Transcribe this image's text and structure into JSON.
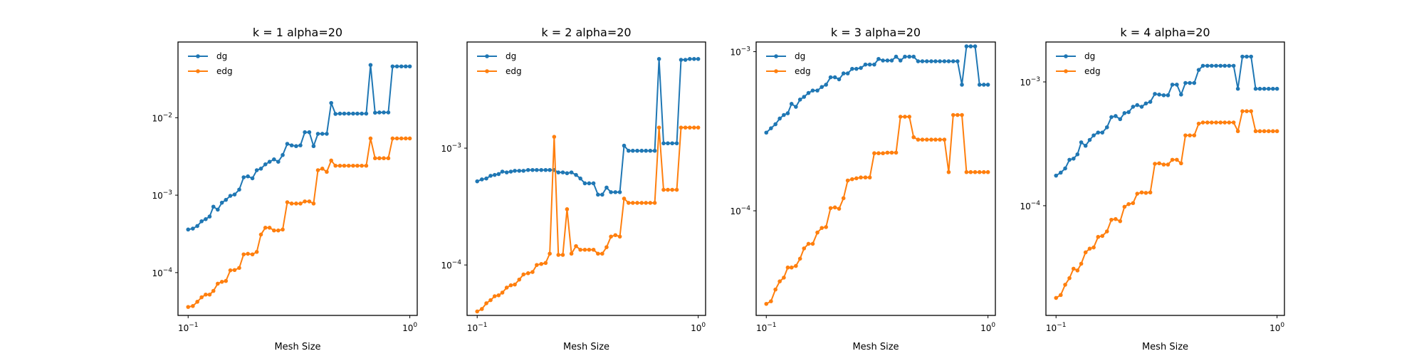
{
  "chart_data": [
    {
      "type": "line",
      "title": "k = 1 alpha=20",
      "xlabel": "Mesh Size",
      "ylabel": "",
      "x_scale": "log",
      "y_scale": "log",
      "xlim": [
        0.09,
        1.08
      ],
      "ylim": [
        2.8e-05,
        0.095
      ],
      "x_ticks": [
        {
          "value": 0.1,
          "label": "10",
          "exp": "−1"
        },
        {
          "value": 1.0,
          "label": "10",
          "exp": "0"
        }
      ],
      "y_ticks": [
        {
          "value": 0.0001,
          "label": "10",
          "exp": "−4"
        },
        {
          "value": 0.001,
          "label": "10",
          "exp": "−3"
        },
        {
          "value": 0.01,
          "label": "10",
          "exp": "−2"
        }
      ],
      "legend_position": "top-left",
      "grid": false,
      "x": [
        0.1,
        0.105,
        0.11,
        0.115,
        0.12,
        0.125,
        0.13,
        0.136,
        0.142,
        0.148,
        0.155,
        0.162,
        0.17,
        0.178,
        0.186,
        0.195,
        0.204,
        0.213,
        0.223,
        0.233,
        0.244,
        0.255,
        0.267,
        0.28,
        0.293,
        0.307,
        0.321,
        0.336,
        0.352,
        0.368,
        0.385,
        0.403,
        0.422,
        0.442,
        0.462,
        0.484,
        0.506,
        0.53,
        0.555,
        0.58,
        0.607,
        0.636,
        0.665,
        0.697,
        0.729,
        0.763,
        0.8,
        0.836,
        0.875,
        0.916,
        0.958,
        1.0
      ],
      "series": [
        {
          "name": "dg",
          "color": "#1f77b4",
          "values": [
            0.00036,
            0.00037,
            0.0004,
            0.00046,
            0.00049,
            0.00053,
            0.00071,
            0.00065,
            0.0008,
            0.00087,
            0.00098,
            0.00102,
            0.00118,
            0.0017,
            0.00175,
            0.00165,
            0.0021,
            0.0022,
            0.0025,
            0.0027,
            0.0029,
            0.0027,
            0.0033,
            0.0046,
            0.0044,
            0.0043,
            0.0044,
            0.0065,
            0.0065,
            0.0043,
            0.0062,
            0.0062,
            0.0062,
            0.0155,
            0.0112,
            0.0113,
            0.0113,
            0.0113,
            0.0113,
            0.0113,
            0.0113,
            0.0113,
            0.048,
            0.0116,
            0.0117,
            0.0117,
            0.0117,
            0.046,
            0.046,
            0.046,
            0.046,
            0.046
          ]
        },
        {
          "name": "edg",
          "color": "#ff7f0e",
          "values": [
            3.6e-05,
            3.7e-05,
            4.2e-05,
            4.8e-05,
            5.2e-05,
            5.2e-05,
            5.8e-05,
            7.2e-05,
            7.6e-05,
            7.8e-05,
            0.000107,
            0.000108,
            0.000115,
            0.000172,
            0.000175,
            0.000172,
            0.000185,
            0.00031,
            0.00038,
            0.00038,
            0.00035,
            0.00035,
            0.00036,
            0.00081,
            0.00078,
            0.00078,
            0.00078,
            0.00083,
            0.00083,
            0.00078,
            0.0021,
            0.0022,
            0.002,
            0.0028,
            0.0024,
            0.0024,
            0.0024,
            0.0024,
            0.0024,
            0.0024,
            0.0024,
            0.0024,
            0.0054,
            0.003,
            0.003,
            0.003,
            0.003,
            0.0054,
            0.0054,
            0.0054,
            0.0054,
            0.0054
          ]
        }
      ]
    },
    {
      "type": "line",
      "title": "k = 2 alpha=20",
      "xlabel": "Mesh Size",
      "ylabel": "",
      "x_scale": "log",
      "y_scale": "log",
      "xlim": [
        0.09,
        1.08
      ],
      "ylim": [
        3.7e-05,
        0.0081
      ],
      "x_ticks": [
        {
          "value": 0.1,
          "label": "10",
          "exp": "−1"
        },
        {
          "value": 1.0,
          "label": "10",
          "exp": "0"
        }
      ],
      "y_ticks": [
        {
          "value": 0.0001,
          "label": "10",
          "exp": "−4"
        },
        {
          "value": 0.001,
          "label": "10",
          "exp": "−3"
        }
      ],
      "legend_position": "top-left",
      "grid": false,
      "x": [
        0.1,
        0.105,
        0.11,
        0.115,
        0.12,
        0.125,
        0.13,
        0.136,
        0.142,
        0.148,
        0.155,
        0.162,
        0.17,
        0.178,
        0.186,
        0.195,
        0.204,
        0.213,
        0.223,
        0.233,
        0.244,
        0.255,
        0.267,
        0.28,
        0.293,
        0.307,
        0.321,
        0.336,
        0.352,
        0.368,
        0.385,
        0.403,
        0.422,
        0.442,
        0.462,
        0.484,
        0.506,
        0.53,
        0.555,
        0.58,
        0.607,
        0.636,
        0.665,
        0.697,
        0.729,
        0.763,
        0.8,
        0.836,
        0.875,
        0.916,
        0.958,
        1.0
      ],
      "series": [
        {
          "name": "dg",
          "color": "#1f77b4",
          "values": [
            0.00052,
            0.00054,
            0.00055,
            0.00058,
            0.00059,
            0.0006,
            0.00063,
            0.00062,
            0.00063,
            0.00064,
            0.00064,
            0.00064,
            0.00065,
            0.00065,
            0.00065,
            0.00065,
            0.00065,
            0.00065,
            0.00065,
            0.00062,
            0.00062,
            0.00061,
            0.00062,
            0.00059,
            0.00055,
            0.0005,
            0.0005,
            0.0005,
            0.0004,
            0.0004,
            0.00046,
            0.00042,
            0.00042,
            0.00042,
            0.00105,
            0.00095,
            0.00095,
            0.00095,
            0.00095,
            0.00095,
            0.00095,
            0.00095,
            0.0058,
            0.0011,
            0.0011,
            0.0011,
            0.0011,
            0.0057,
            0.0057,
            0.0058,
            0.0058,
            0.0058
          ]
        },
        {
          "name": "edg",
          "color": "#ff7f0e",
          "values": [
            4e-05,
            4.2e-05,
            4.7e-05,
            5e-05,
            5.4e-05,
            5.5e-05,
            5.8e-05,
            6.4e-05,
            6.7e-05,
            6.8e-05,
            7.5e-05,
            8.3e-05,
            8.5e-05,
            8.7e-05,
            0.0001,
            0.000102,
            0.000104,
            0.000125,
            0.00125,
            0.000122,
            0.000122,
            0.0003,
            0.000125,
            0.000145,
            0.000135,
            0.000135,
            0.000135,
            0.000135,
            0.000125,
            0.000125,
            0.000142,
            0.000175,
            0.00018,
            0.000175,
            0.00037,
            0.00034,
            0.00034,
            0.00034,
            0.00034,
            0.00034,
            0.00034,
            0.00034,
            0.0015,
            0.00044,
            0.00044,
            0.00044,
            0.00044,
            0.0015,
            0.0015,
            0.0015,
            0.0015,
            0.0015
          ]
        }
      ]
    },
    {
      "type": "line",
      "title": "k = 3 alpha=20",
      "xlabel": "Mesh Size",
      "ylabel": "",
      "x_scale": "log",
      "y_scale": "log",
      "xlim": [
        0.09,
        1.08
      ],
      "ylim": [
        2.2e-05,
        0.00115
      ],
      "x_ticks": [
        {
          "value": 0.1,
          "label": "10",
          "exp": "−1"
        },
        {
          "value": 1.0,
          "label": "10",
          "exp": "0"
        }
      ],
      "y_ticks": [
        {
          "value": 0.0001,
          "label": "10",
          "exp": "−4"
        },
        {
          "value": 0.001,
          "label": "10",
          "exp": "−3"
        }
      ],
      "legend_position": "top-left",
      "grid": false,
      "x": [
        0.1,
        0.105,
        0.11,
        0.115,
        0.12,
        0.125,
        0.13,
        0.136,
        0.142,
        0.148,
        0.155,
        0.162,
        0.17,
        0.178,
        0.186,
        0.195,
        0.204,
        0.213,
        0.223,
        0.233,
        0.244,
        0.255,
        0.267,
        0.28,
        0.293,
        0.307,
        0.321,
        0.336,
        0.352,
        0.368,
        0.385,
        0.403,
        0.422,
        0.442,
        0.462,
        0.484,
        0.506,
        0.53,
        0.555,
        0.58,
        0.607,
        0.636,
        0.665,
        0.697,
        0.729,
        0.763,
        0.8,
        0.836,
        0.875,
        0.916,
        0.958,
        1.0
      ],
      "series": [
        {
          "name": "dg",
          "color": "#1f77b4",
          "values": [
            0.00031,
            0.00033,
            0.00035,
            0.00038,
            0.0004,
            0.00041,
            0.00047,
            0.00045,
            0.0005,
            0.00052,
            0.00055,
            0.00057,
            0.00057,
            0.0006,
            0.00062,
            0.00069,
            0.00069,
            0.00067,
            0.00073,
            0.00073,
            0.00078,
            0.00078,
            0.00079,
            0.00083,
            0.00083,
            0.00083,
            0.0009,
            0.00088,
            0.00088,
            0.00088,
            0.00093,
            0.00088,
            0.00093,
            0.00093,
            0.00093,
            0.00087,
            0.00087,
            0.00087,
            0.00087,
            0.00087,
            0.00087,
            0.00087,
            0.00087,
            0.00087,
            0.00087,
            0.00062,
            0.00108,
            0.00108,
            0.00108,
            0.00062,
            0.00062,
            0.00062
          ]
        },
        {
          "name": "edg",
          "color": "#ff7f0e",
          "values": [
            2.6e-05,
            2.7e-05,
            3.2e-05,
            3.6e-05,
            3.8e-05,
            4.4e-05,
            4.4e-05,
            4.5e-05,
            5e-05,
            5.8e-05,
            6.2e-05,
            6.2e-05,
            7.3e-05,
            7.8e-05,
            7.9e-05,
            0.000104,
            0.000105,
            0.000103,
            0.00012,
            0.000155,
            0.000158,
            0.00016,
            0.000162,
            0.000162,
            0.000162,
            0.00023,
            0.00023,
            0.00023,
            0.000232,
            0.000232,
            0.000232,
            0.00039,
            0.00039,
            0.00039,
            0.00029,
            0.00028,
            0.00028,
            0.00028,
            0.00028,
            0.00028,
            0.00028,
            0.00028,
            0.000175,
            0.0004,
            0.0004,
            0.0004,
            0.000175,
            0.000175,
            0.000175,
            0.000175,
            0.000175,
            0.000175
          ]
        }
      ]
    },
    {
      "type": "line",
      "title": "k = 4 alpha=20",
      "xlabel": "Mesh Size",
      "ylabel": "",
      "x_scale": "log",
      "y_scale": "log",
      "xlim": [
        0.09,
        1.08
      ],
      "ylim": [
        1.3e-05,
        0.0021
      ],
      "x_ticks": [
        {
          "value": 0.1,
          "label": "10",
          "exp": "−1"
        },
        {
          "value": 1.0,
          "label": "10",
          "exp": "0"
        }
      ],
      "y_ticks": [
        {
          "value": 0.0001,
          "label": "10",
          "exp": "−4"
        },
        {
          "value": 0.001,
          "label": "10",
          "exp": "−3"
        }
      ],
      "legend_position": "top-left",
      "grid": false,
      "x": [
        0.1,
        0.105,
        0.11,
        0.115,
        0.12,
        0.125,
        0.13,
        0.136,
        0.142,
        0.148,
        0.155,
        0.162,
        0.17,
        0.178,
        0.186,
        0.195,
        0.204,
        0.213,
        0.223,
        0.233,
        0.244,
        0.255,
        0.267,
        0.28,
        0.293,
        0.307,
        0.321,
        0.336,
        0.352,
        0.368,
        0.385,
        0.403,
        0.422,
        0.442,
        0.462,
        0.484,
        0.506,
        0.53,
        0.555,
        0.58,
        0.607,
        0.636,
        0.665,
        0.697,
        0.729,
        0.763,
        0.8,
        0.836,
        0.875,
        0.916,
        0.958,
        1.0
      ],
      "series": [
        {
          "name": "dg",
          "color": "#1f77b4",
          "values": [
            0.000175,
            0.000185,
            0.0002,
            0.000235,
            0.00024,
            0.00026,
            0.000325,
            0.000305,
            0.00034,
            0.00037,
            0.00039,
            0.00039,
            0.00043,
            0.00052,
            0.00053,
            0.0005,
            0.00056,
            0.00057,
            0.00063,
            0.00065,
            0.00063,
            0.00067,
            0.00069,
            0.0008,
            0.00079,
            0.00078,
            0.00078,
            0.00095,
            0.00095,
            0.00079,
            0.00098,
            0.00098,
            0.00098,
            0.00125,
            0.00135,
            0.00135,
            0.00135,
            0.00135,
            0.00135,
            0.00135,
            0.00135,
            0.00135,
            0.00088,
            0.0016,
            0.0016,
            0.0016,
            0.00088,
            0.00088,
            0.00088,
            0.00088,
            0.00088,
            0.00088
          ]
        },
        {
          "name": "edg",
          "color": "#ff7f0e",
          "values": [
            1.8e-05,
            1.9e-05,
            2.3e-05,
            2.6e-05,
            3.1e-05,
            3e-05,
            3.4e-05,
            4.2e-05,
            4.5e-05,
            4.6e-05,
            5.6e-05,
            5.7e-05,
            6.2e-05,
            7.7e-05,
            7.8e-05,
            7.5e-05,
            9.8e-05,
            0.000103,
            0.000105,
            0.000125,
            0.000128,
            0.000127,
            0.000128,
            0.000218,
            0.00022,
            0.000215,
            0.000215,
            0.000235,
            0.000235,
            0.00022,
            0.00037,
            0.00037,
            0.00037,
            0.00046,
            0.00047,
            0.00047,
            0.00047,
            0.00047,
            0.00047,
            0.00047,
            0.00047,
            0.00047,
            0.0004,
            0.00058,
            0.00058,
            0.00058,
            0.0004,
            0.0004,
            0.0004,
            0.0004,
            0.0004,
            0.0004
          ]
        }
      ]
    }
  ]
}
